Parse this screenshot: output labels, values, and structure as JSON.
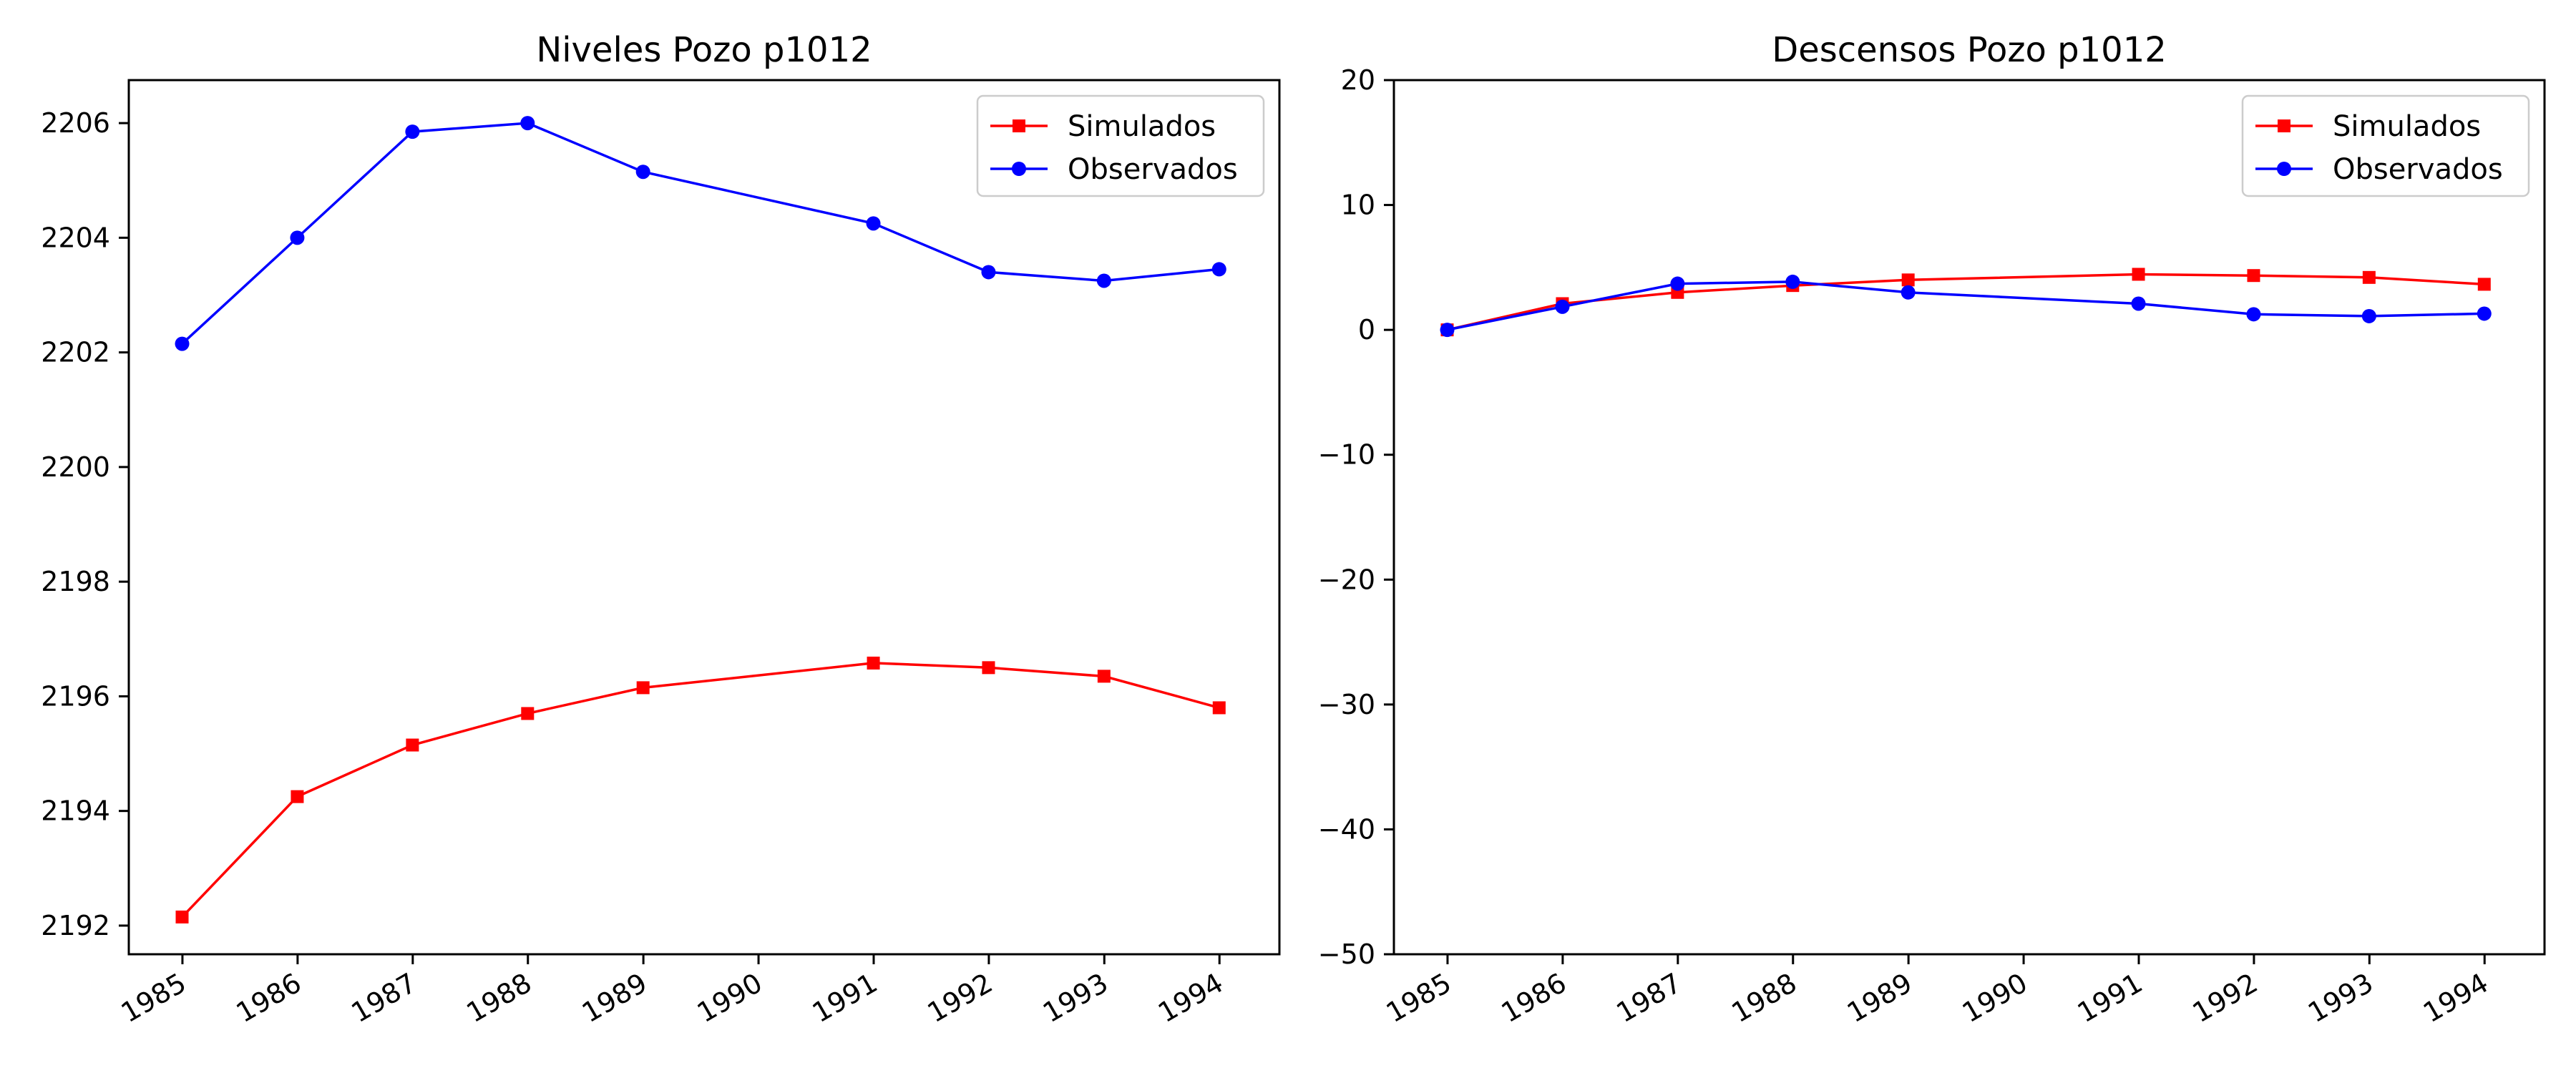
{
  "chart_data": [
    {
      "type": "line",
      "title": "Niveles Pozo p1012",
      "xlabel": "",
      "ylabel": "",
      "x_type": "date",
      "x_ticks": [
        "1985",
        "1986",
        "1987",
        "1988",
        "1989",
        "1990",
        "1991",
        "1992",
        "1993",
        "1994"
      ],
      "xlim": [
        "1984-07-15",
        "1994-07-10"
      ],
      "ylim": [
        2191.5,
        2206.75
      ],
      "y_ticks": [
        "2192",
        "2194",
        "2196",
        "2198",
        "2200",
        "2202",
        "2204",
        "2206"
      ],
      "grid": false,
      "legend_location": "upper right",
      "series": [
        {
          "name": "Simulados",
          "color": "#ff0000",
          "marker": "square",
          "x": [
            "1984-12-31",
            "1985-12-31",
            "1986-12-31",
            "1987-12-31",
            "1988-12-31",
            "1990-12-31",
            "1991-12-31",
            "1992-12-31",
            "1993-12-31"
          ],
          "y": [
            2192.15,
            2194.25,
            2195.15,
            2195.7,
            2196.15,
            2196.58,
            2196.5,
            2196.35,
            2195.8
          ]
        },
        {
          "name": "Observados",
          "color": "#0000ff",
          "marker": "circle",
          "x": [
            "1984-12-31",
            "1985-12-31",
            "1986-12-31",
            "1987-12-31",
            "1988-12-31",
            "1990-12-31",
            "1991-12-31",
            "1992-12-31",
            "1993-12-31"
          ],
          "y": [
            2202.15,
            2204.0,
            2205.85,
            2206.0,
            2205.15,
            2204.25,
            2203.4,
            2203.25,
            2203.45
          ]
        }
      ]
    },
    {
      "type": "line",
      "title": "Descensos Pozo p1012",
      "xlabel": "",
      "ylabel": "",
      "x_type": "date",
      "x_ticks": [
        "1985",
        "1986",
        "1987",
        "1988",
        "1989",
        "1990",
        "1991",
        "1992",
        "1993",
        "1994"
      ],
      "xlim": [
        "1984-07-15",
        "1994-07-10"
      ],
      "ylim": [
        -50,
        20
      ],
      "y_ticks": [
        "−50",
        "−40",
        "−30",
        "−20",
        "−10",
        "0",
        "10",
        "20"
      ],
      "grid": false,
      "legend_location": "upper right",
      "series": [
        {
          "name": "Simulados",
          "color": "#ff0000",
          "marker": "square",
          "x": [
            "1984-12-31",
            "1985-12-31",
            "1986-12-31",
            "1987-12-31",
            "1988-12-31",
            "1990-12-31",
            "1991-12-31",
            "1992-12-31",
            "1993-12-31"
          ],
          "y": [
            0.0,
            2.1,
            3.0,
            3.55,
            4.0,
            4.45,
            4.35,
            4.2,
            3.65
          ]
        },
        {
          "name": "Observados",
          "color": "#0000ff",
          "marker": "circle",
          "x": [
            "1984-12-31",
            "1985-12-31",
            "1986-12-31",
            "1987-12-31",
            "1988-12-31",
            "1990-12-31",
            "1991-12-31",
            "1992-12-31",
            "1993-12-31"
          ],
          "y": [
            0.0,
            1.85,
            3.7,
            3.85,
            3.0,
            2.1,
            1.25,
            1.1,
            1.3
          ]
        }
      ]
    }
  ]
}
